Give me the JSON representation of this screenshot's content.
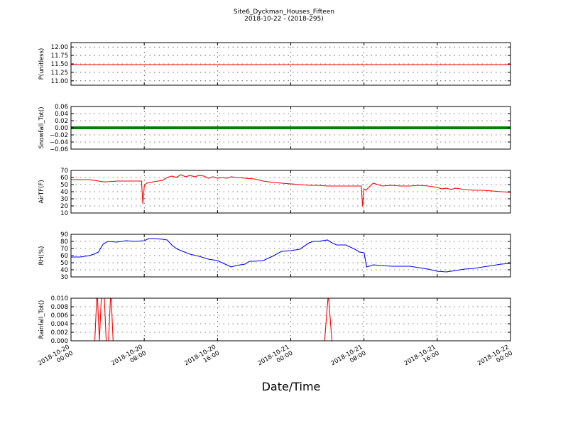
{
  "chart_data": {
    "type": "line",
    "title": "Site6_Dyckman_Houses_Fifteen",
    "subtitle": "2018-10-22 - (2018-295)",
    "xlabel": "Date/Time",
    "grid": true,
    "xrange": [
      "2018-10-20 00:00",
      "2018-10-22 00:00"
    ],
    "xticks": [
      {
        "l1": "2018-10-20",
        "l2": "00:00",
        "h": 0
      },
      {
        "l1": "2018-10-20",
        "l2": "08:00",
        "h": 8
      },
      {
        "l1": "2018-10-20",
        "l2": "16:00",
        "h": 16
      },
      {
        "l1": "2018-10-21",
        "l2": "00:00",
        "h": 24
      },
      {
        "l1": "2018-10-21",
        "l2": "08:00",
        "h": 32
      },
      {
        "l1": "2018-10-21",
        "l2": "16:00",
        "h": 40
      },
      {
        "l1": "2018-10-22",
        "l2": "00:00",
        "h": 48
      }
    ],
    "panels": [
      {
        "ylabel": "P(unitless)",
        "ylim": [
          10.87,
          12.13
        ],
        "yticks": [
          11.0,
          11.25,
          11.5,
          11.75,
          12.0
        ],
        "tick_labels": [
          "11.00",
          "11.25",
          "11.50",
          "11.75",
          "12.00"
        ],
        "color": "#ff0000",
        "x": [
          0,
          48
        ],
        "y": [
          11.48,
          11.48
        ]
      },
      {
        "ylabel": "Snowfall_Tot()",
        "ylim": [
          -0.06,
          0.06
        ],
        "yticks": [
          -0.06,
          -0.04,
          -0.02,
          0.0,
          0.02,
          0.04,
          0.06
        ],
        "tick_labels": [
          "−0.06",
          "−0.04",
          "−0.02",
          "0.00",
          "0.02",
          "0.04",
          "0.06"
        ],
        "color": "#008000",
        "thick": true,
        "x": [
          0,
          48
        ],
        "y": [
          0.0,
          0.0
        ]
      },
      {
        "ylabel": "AirTF(F)",
        "ylim": [
          10,
          70
        ],
        "yticks": [
          10,
          20,
          30,
          40,
          50,
          60,
          70
        ],
        "tick_labels": [
          "10",
          "20",
          "30",
          "40",
          "50",
          "60",
          "70"
        ],
        "color": "#ff0000",
        "x": [
          0,
          1,
          2,
          3,
          3.5,
          4,
          5,
          6,
          7,
          7.7,
          7.85,
          8.0,
          8.25,
          9,
          10,
          10.5,
          11,
          11.5,
          12,
          12.5,
          13,
          13.5,
          14,
          14.5,
          15,
          15.5,
          16,
          16.5,
          17,
          17.5,
          18,
          19,
          20,
          21,
          22,
          23,
          24,
          25,
          26,
          27,
          28,
          29,
          30,
          31,
          31.7,
          31.85,
          32.0,
          32.2,
          33,
          33.5,
          34,
          35,
          36,
          37,
          38,
          39,
          40,
          40.5,
          41,
          41.5,
          42,
          42.5,
          43,
          44,
          45,
          46,
          47,
          48
        ],
        "y": [
          57,
          57,
          57,
          55,
          54,
          54,
          55,
          55,
          55,
          55,
          23,
          48,
          52,
          54,
          56,
          60,
          62,
          60,
          64,
          61,
          63,
          61,
          63,
          62,
          59,
          61,
          59,
          60,
          59,
          61,
          60,
          59,
          58,
          55,
          53,
          52,
          51,
          50,
          49,
          49,
          48,
          48,
          48,
          48,
          48,
          19,
          44,
          42,
          52,
          50,
          48,
          49,
          48,
          48,
          49,
          48,
          46,
          44,
          45,
          43,
          45,
          44,
          43,
          42,
          42,
          41,
          40,
          39
        ]
      },
      {
        "ylabel": "RH(%)",
        "ylim": [
          30,
          90
        ],
        "yticks": [
          30,
          40,
          50,
          60,
          70,
          80,
          90
        ],
        "tick_labels": [
          "30",
          "40",
          "50",
          "60",
          "70",
          "80",
          "90"
        ],
        "color": "#0000ff",
        "x": [
          0,
          1,
          2,
          2.5,
          3,
          3.5,
          4,
          5,
          6,
          7,
          8,
          8.5,
          9,
          10,
          10.5,
          11,
          11.5,
          12,
          13,
          14,
          15,
          16,
          17,
          17.5,
          18,
          19,
          19.5,
          20,
          21,
          22,
          23,
          24,
          25,
          26,
          26.5,
          27,
          28,
          28.5,
          29,
          30,
          31,
          31.5,
          32,
          32.3,
          33,
          34,
          35,
          36,
          37,
          38,
          39,
          40,
          41,
          42,
          43,
          44,
          45,
          46,
          47,
          48
        ],
        "y": [
          58,
          58,
          60,
          62,
          65,
          76,
          80,
          79,
          81,
          80,
          81,
          84,
          84,
          83,
          82,
          75,
          70,
          67,
          62,
          59,
          55,
          53,
          47,
          44,
          46,
          48,
          52,
          52,
          53,
          59,
          66,
          67,
          69,
          78,
          80,
          80,
          82,
          78,
          75,
          75,
          69,
          65,
          64,
          44,
          47,
          46,
          45,
          45,
          45,
          43,
          41,
          38,
          37,
          39,
          41,
          42,
          44,
          46,
          48,
          49
        ]
      },
      {
        "ylabel": "Rainfall_Tot()",
        "ylim": [
          0,
          0.01
        ],
        "yticks": [
          0,
          0.002,
          0.004,
          0.006,
          0.008,
          0.01
        ],
        "tick_labels": [
          "0.000",
          "0.002",
          "0.004",
          "0.006",
          "0.008",
          "0.010"
        ],
        "color": "#ff0000",
        "x": [
          0,
          2.6,
          2.85,
          3.1,
          3.35,
          3.6,
          3.85,
          4.1,
          4.35,
          4.6,
          27.7,
          28.1,
          28.5,
          48
        ],
        "y": [
          0,
          0,
          0.012,
          0,
          0.012,
          0.012,
          0,
          0,
          0.012,
          0,
          0,
          0.011,
          0,
          0
        ]
      }
    ]
  }
}
